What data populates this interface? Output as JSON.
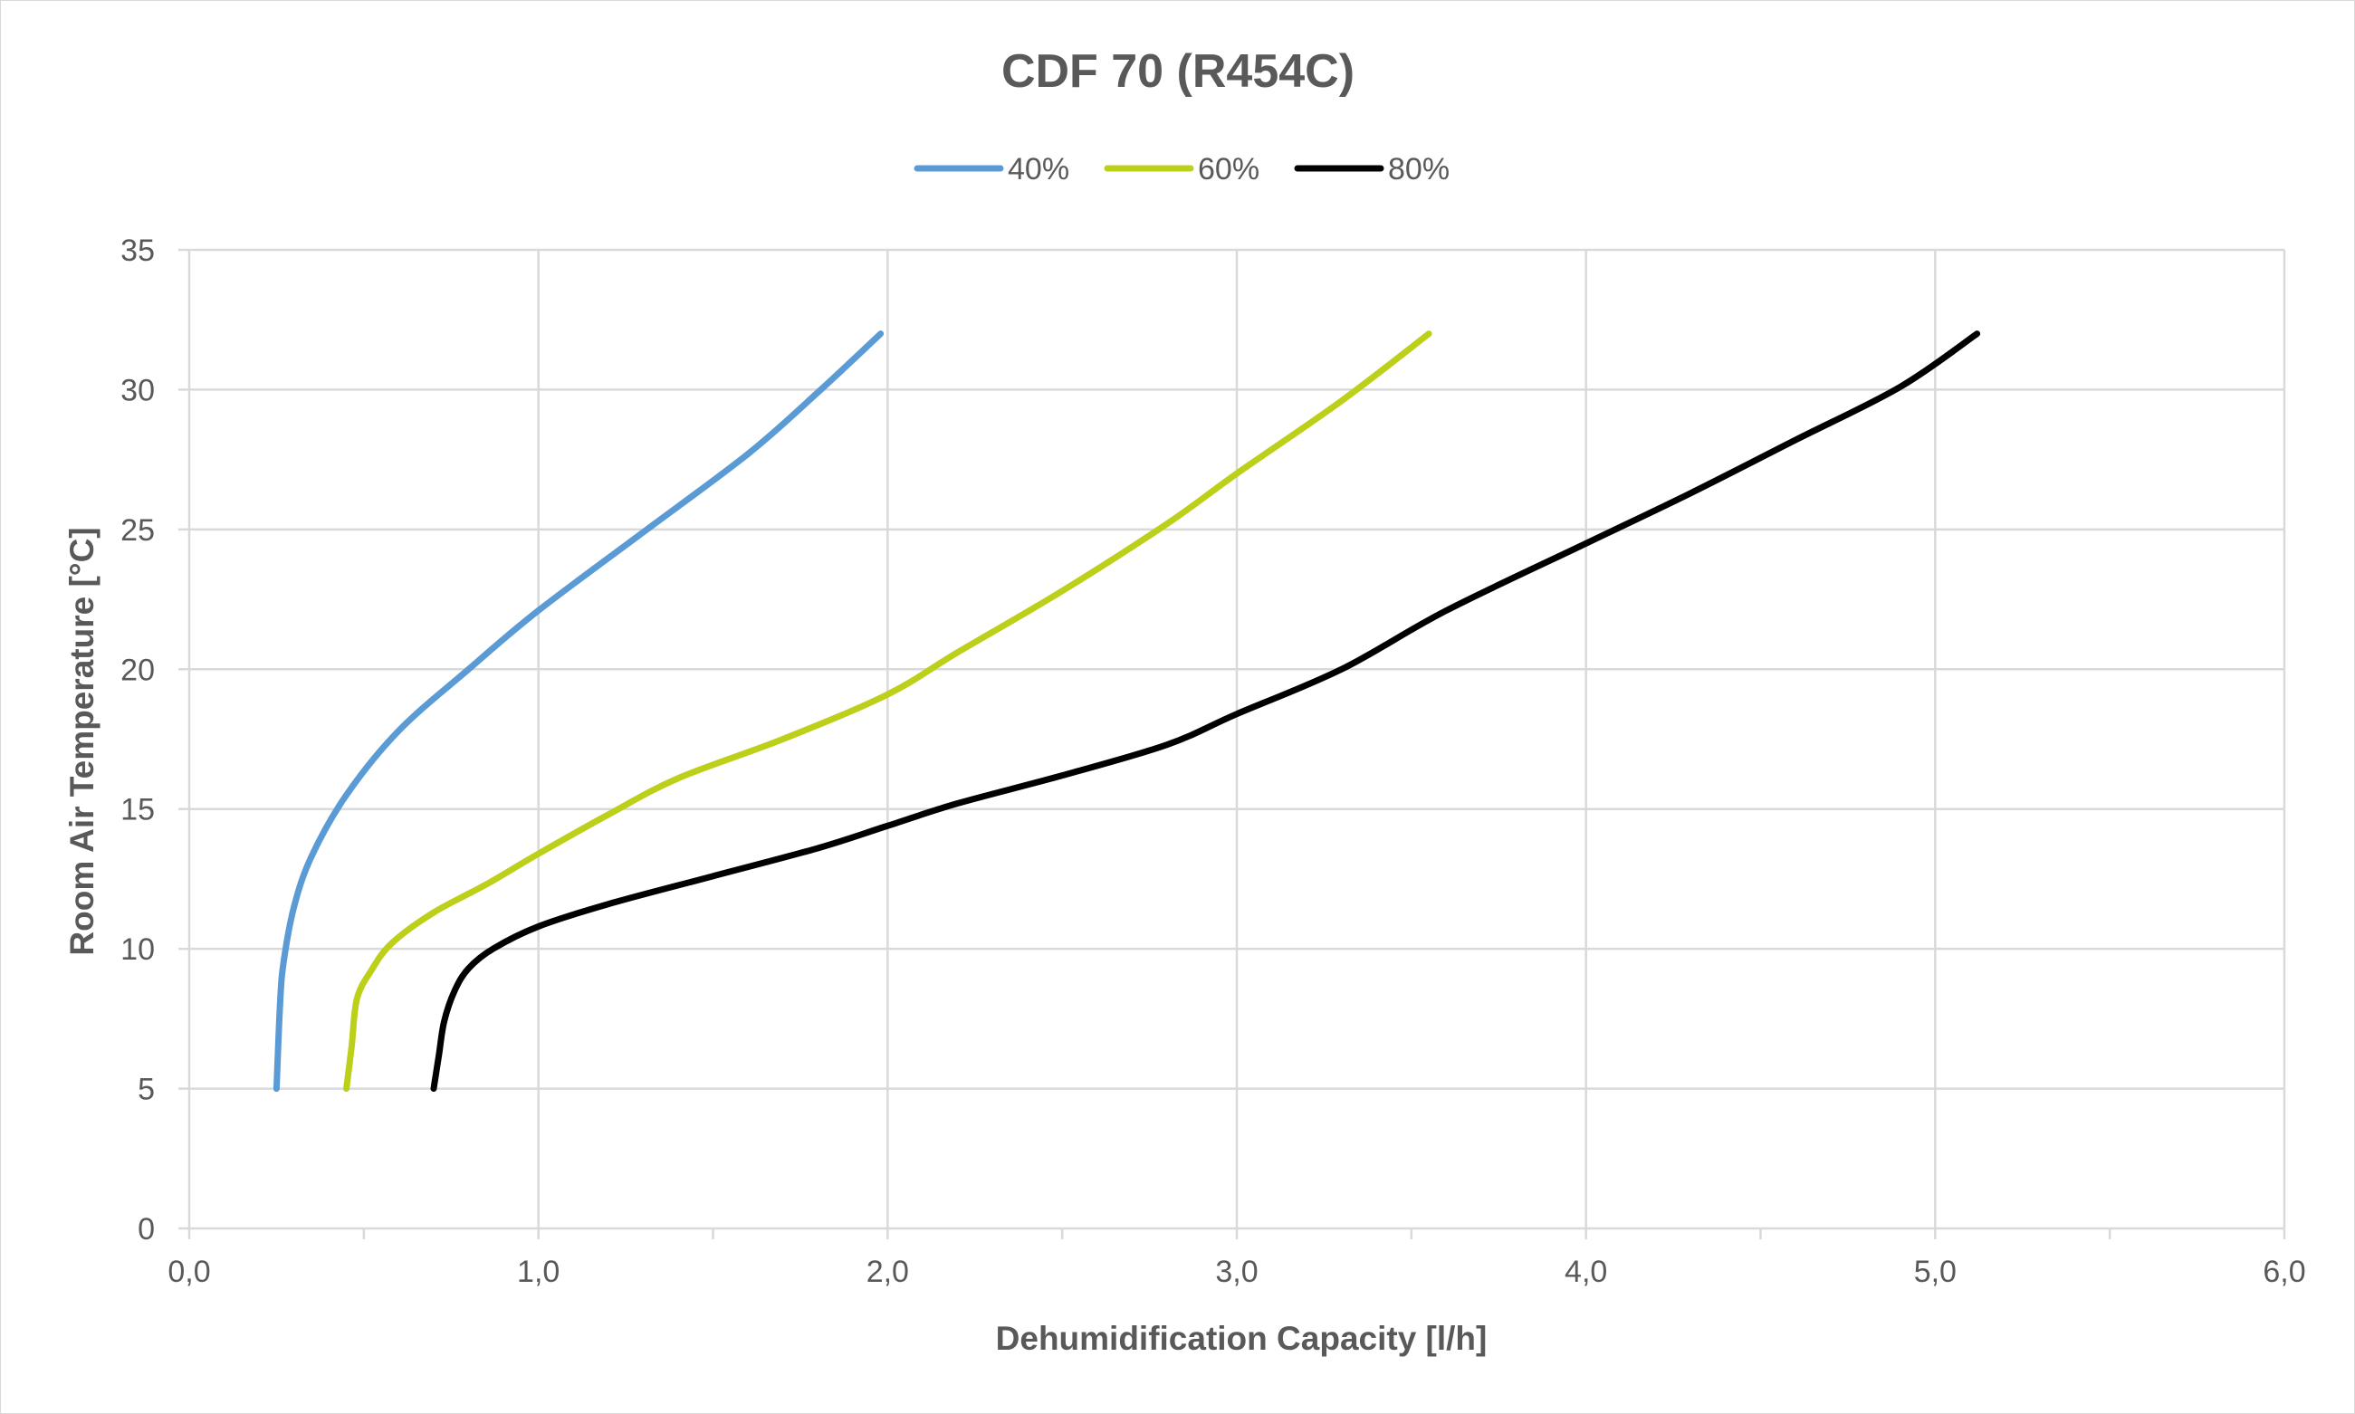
{
  "chart_data": {
    "type": "line",
    "title": "CDF 70 (R454C)",
    "xlabel": "Dehumidification Capacity [l/h]",
    "ylabel": "Room Air Temperature [°C]",
    "xlim": [
      0,
      6
    ],
    "ylim": [
      0,
      35
    ],
    "x_ticks": [
      0,
      1,
      2,
      3,
      4,
      5,
      6
    ],
    "x_tick_labels": [
      "0,0",
      "1,0",
      "2,0",
      "3,0",
      "4,0",
      "5,0",
      "6,0"
    ],
    "x_minor_ticks": [
      0.5,
      1.5,
      2.5,
      3.5,
      4.5,
      5.5
    ],
    "y_ticks": [
      0,
      5,
      10,
      15,
      20,
      25,
      30,
      35
    ],
    "y_tick_labels": [
      "0",
      "5",
      "10",
      "15",
      "20",
      "25",
      "30",
      "35"
    ],
    "grid": true,
    "legend_position": "top-center",
    "series": [
      {
        "name": "40%",
        "color": "#5b9bd5",
        "points": [
          [
            0.25,
            5
          ],
          [
            0.26,
            8
          ],
          [
            0.27,
            9.5
          ],
          [
            0.3,
            11.5
          ],
          [
            0.35,
            13.3
          ],
          [
            0.45,
            15.5
          ],
          [
            0.6,
            17.8
          ],
          [
            0.8,
            20
          ],
          [
            1.0,
            22.1
          ],
          [
            1.3,
            24.9
          ],
          [
            1.6,
            27.7
          ],
          [
            1.8,
            29.9
          ],
          [
            1.98,
            32
          ]
        ]
      },
      {
        "name": "60%",
        "color": "#bcd019",
        "points": [
          [
            0.45,
            5
          ],
          [
            0.465,
            6.5
          ],
          [
            0.48,
            8.2
          ],
          [
            0.52,
            9.2
          ],
          [
            0.58,
            10.2
          ],
          [
            0.7,
            11.3
          ],
          [
            0.85,
            12.3
          ],
          [
            1.0,
            13.4
          ],
          [
            1.2,
            14.8
          ],
          [
            1.4,
            16.1
          ],
          [
            1.7,
            17.5
          ],
          [
            2.0,
            19.1
          ],
          [
            2.2,
            20.6
          ],
          [
            2.5,
            22.8
          ],
          [
            2.8,
            25.2
          ],
          [
            3.0,
            27.0
          ],
          [
            3.3,
            29.6
          ],
          [
            3.55,
            32
          ]
        ]
      },
      {
        "name": "80%",
        "color": "#000000",
        "points": [
          [
            0.7,
            5
          ],
          [
            0.715,
            6.2
          ],
          [
            0.73,
            7.4
          ],
          [
            0.76,
            8.5
          ],
          [
            0.8,
            9.3
          ],
          [
            0.87,
            10
          ],
          [
            1.0,
            10.8
          ],
          [
            1.2,
            11.6
          ],
          [
            1.5,
            12.6
          ],
          [
            1.8,
            13.6
          ],
          [
            2.0,
            14.4
          ],
          [
            2.2,
            15.2
          ],
          [
            2.5,
            16.2
          ],
          [
            2.8,
            17.3
          ],
          [
            3.0,
            18.4
          ],
          [
            3.3,
            20.0
          ],
          [
            3.6,
            22.1
          ],
          [
            4.0,
            24.5
          ],
          [
            4.3,
            26.3
          ],
          [
            4.6,
            28.2
          ],
          [
            4.9,
            30.1
          ],
          [
            5.12,
            32
          ]
        ]
      }
    ]
  }
}
